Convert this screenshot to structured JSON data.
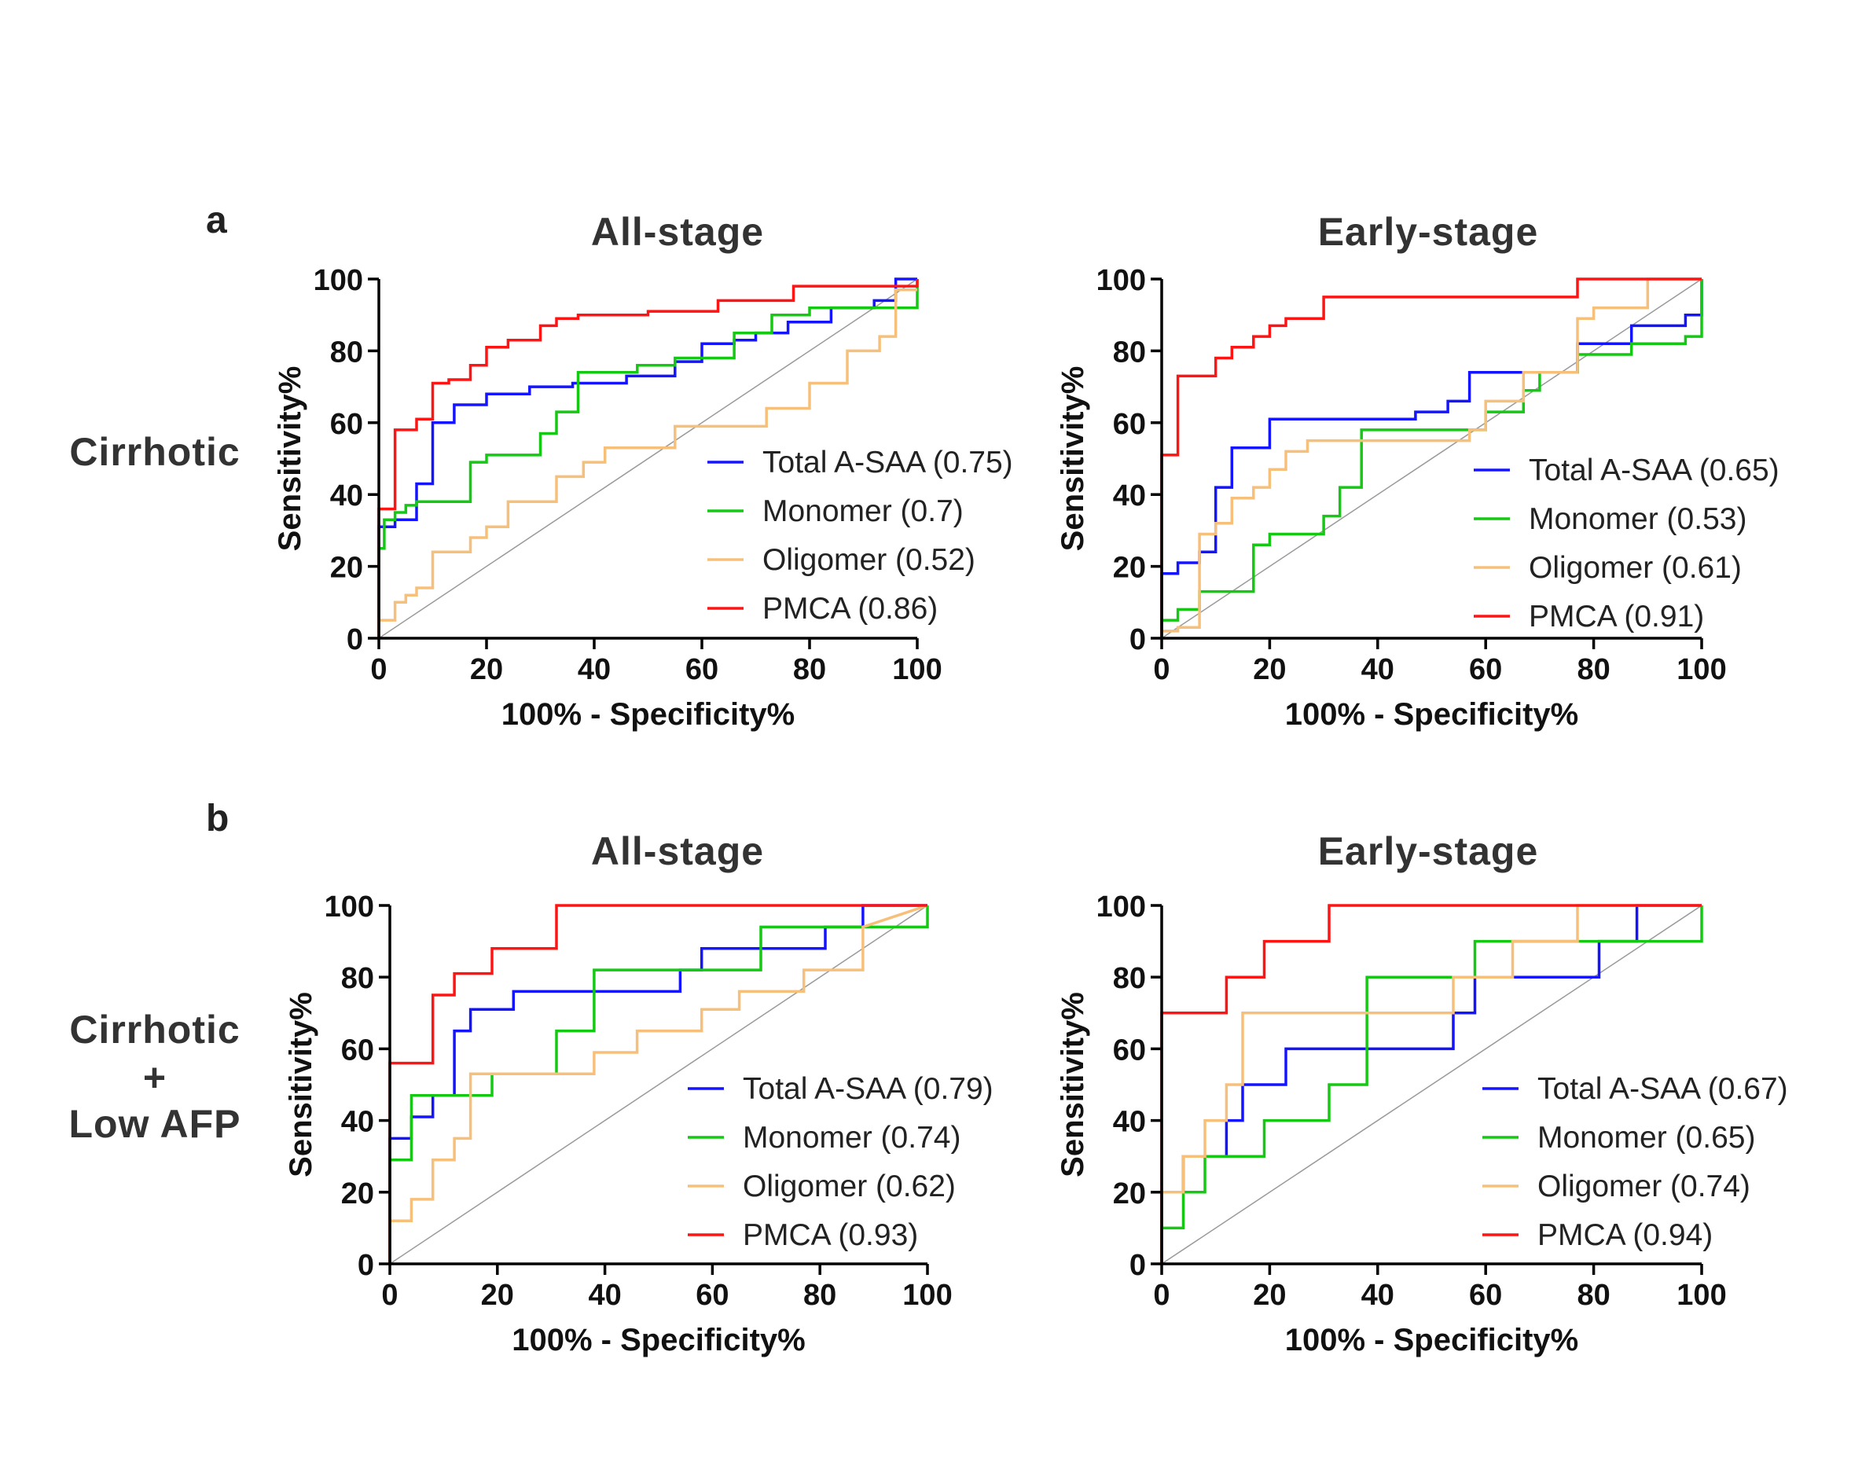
{
  "panels": [
    {
      "letter": "a",
      "row_label": [
        "Cirrhotic"
      ]
    },
    {
      "letter": "b",
      "row_label": [
        "Cirrhotic",
        "+",
        "Low AFP"
      ]
    }
  ],
  "colors": {
    "Total A-SAA": "#1414ff",
    "Monomer": "#14c814",
    "Oligomer": "#f7c07a",
    "PMCA": "#ff1414",
    "reference": "#9a9a9a",
    "axis": "#000000"
  },
  "chart_data": [
    {
      "type": "line",
      "panel": "a",
      "title": "All-stage",
      "xlabel": "100% - Specificity%",
      "ylabel": "Sensitivity%",
      "xlim": [
        0,
        100
      ],
      "ylim": [
        0,
        100
      ],
      "xticks": [
        0,
        20,
        40,
        60,
        80,
        100
      ],
      "yticks": [
        0,
        20,
        40,
        60,
        80,
        100
      ],
      "grid": false,
      "legend_position": "lower-right",
      "series": [
        {
          "name": "Total A-SAA",
          "auc": "(0.75)",
          "label": "Total A-SAA (0.75)",
          "x": [
            0,
            0,
            3,
            3,
            7,
            7,
            10,
            10,
            14,
            14,
            20,
            20,
            28,
            28,
            36,
            36,
            46,
            46,
            55,
            55,
            60,
            60,
            66,
            66,
            70,
            70,
            76,
            76,
            84,
            84,
            92,
            92,
            96,
            96,
            100,
            100
          ],
          "y": [
            0,
            31,
            31,
            33,
            33,
            43,
            43,
            60,
            60,
            65,
            65,
            68,
            68,
            70,
            70,
            71,
            71,
            73,
            73,
            77,
            77,
            82,
            82,
            83,
            83,
            85,
            85,
            88,
            88,
            92,
            92,
            94,
            94,
            100,
            100,
            100
          ]
        },
        {
          "name": "Monomer",
          "auc": "(0.7)",
          "label": "Monomer (0.7)",
          "x": [
            0,
            0,
            1,
            1,
            3,
            3,
            5,
            5,
            7,
            7,
            10,
            10,
            17,
            17,
            20,
            20,
            30,
            30,
            33,
            33,
            37,
            37,
            48,
            48,
            55,
            55,
            66,
            66,
            73,
            73,
            80,
            80,
            100,
            100
          ],
          "y": [
            0,
            25,
            25,
            33,
            33,
            35,
            35,
            37,
            37,
            38,
            38,
            38,
            38,
            49,
            49,
            51,
            51,
            57,
            57,
            63,
            63,
            74,
            74,
            76,
            76,
            78,
            78,
            85,
            85,
            90,
            90,
            92,
            92,
            100
          ]
        },
        {
          "name": "Oligomer",
          "auc": "(0.52)",
          "label": "Oligomer (0.52)",
          "x": [
            0,
            0,
            3,
            3,
            5,
            5,
            7,
            7,
            10,
            10,
            17,
            17,
            20,
            20,
            24,
            24,
            33,
            33,
            38,
            38,
            42,
            42,
            55,
            55,
            72,
            72,
            80,
            80,
            87,
            87,
            93,
            93,
            96,
            96,
            100
          ],
          "y": [
            0,
            5,
            5,
            10,
            10,
            12,
            12,
            14,
            14,
            24,
            24,
            28,
            28,
            31,
            31,
            38,
            38,
            45,
            45,
            49,
            49,
            53,
            53,
            59,
            59,
            64,
            64,
            71,
            71,
            80,
            80,
            84,
            84,
            97,
            97
          ]
        },
        {
          "name": "PMCA",
          "auc": "(0.86)",
          "label": "PMCA (0.86)",
          "x": [
            0,
            0,
            3,
            3,
            7,
            7,
            10,
            10,
            13,
            13,
            17,
            17,
            20,
            20,
            24,
            24,
            30,
            30,
            33,
            33,
            37,
            37,
            50,
            50,
            63,
            63,
            77,
            77,
            100,
            100
          ],
          "y": [
            0,
            36,
            36,
            58,
            58,
            61,
            61,
            71,
            71,
            72,
            72,
            76,
            76,
            81,
            81,
            83,
            83,
            87,
            87,
            89,
            89,
            90,
            90,
            91,
            91,
            94,
            94,
            98,
            98,
            100
          ]
        }
      ]
    },
    {
      "type": "line",
      "panel": "a",
      "title": "Early-stage",
      "xlabel": "100% - Specificity%",
      "ylabel": "Sensitivity%",
      "xlim": [
        0,
        100
      ],
      "ylim": [
        0,
        100
      ],
      "xticks": [
        0,
        20,
        40,
        60,
        80,
        100
      ],
      "yticks": [
        0,
        20,
        40,
        60,
        80,
        100
      ],
      "grid": false,
      "legend_position": "lower-right",
      "series": [
        {
          "name": "Total A-SAA",
          "auc": "(0.65)",
          "label": "Total A-SAA (0.65)",
          "x": [
            0,
            0,
            3,
            3,
            7,
            7,
            10,
            10,
            13,
            13,
            20,
            20,
            33,
            33,
            47,
            47,
            53,
            53,
            57,
            57,
            70,
            70,
            77,
            77,
            87,
            87,
            97,
            97,
            100,
            100
          ],
          "y": [
            0,
            18,
            18,
            21,
            21,
            24,
            24,
            42,
            42,
            53,
            53,
            61,
            61,
            61,
            61,
            63,
            63,
            66,
            66,
            74,
            74,
            74,
            74,
            82,
            82,
            87,
            87,
            90,
            90,
            100
          ]
        },
        {
          "name": "Monomer",
          "auc": "(0.53)",
          "label": "Monomer (0.53)",
          "x": [
            0,
            0,
            3,
            3,
            7,
            7,
            17,
            17,
            20,
            20,
            30,
            30,
            33,
            33,
            37,
            37,
            60,
            60,
            67,
            67,
            70,
            70,
            77,
            77,
            87,
            87,
            97,
            97,
            100,
            100
          ],
          "y": [
            0,
            5,
            5,
            8,
            8,
            13,
            13,
            26,
            26,
            29,
            29,
            34,
            34,
            42,
            42,
            58,
            58,
            63,
            63,
            69,
            69,
            74,
            74,
            79,
            79,
            82,
            82,
            84,
            84,
            100
          ]
        },
        {
          "name": "Oligomer",
          "auc": "(0.61)",
          "label": "Oligomer (0.61)",
          "x": [
            0,
            0,
            3,
            3,
            7,
            7,
            10,
            10,
            13,
            13,
            17,
            17,
            20,
            20,
            23,
            23,
            27,
            27,
            30,
            30,
            57,
            57,
            60,
            60,
            67,
            67,
            77,
            77,
            80,
            80,
            87,
            87,
            90,
            90,
            100
          ],
          "y": [
            0,
            2,
            2,
            3,
            3,
            29,
            29,
            32,
            32,
            39,
            39,
            42,
            42,
            47,
            47,
            52,
            52,
            55,
            55,
            55,
            55,
            58,
            58,
            66,
            66,
            74,
            74,
            89,
            89,
            92,
            92,
            92,
            92,
            100,
            100
          ]
        },
        {
          "name": "PMCA",
          "auc": "(0.91)",
          "label": "PMCA (0.91)",
          "x": [
            0,
            0,
            3,
            3,
            10,
            10,
            13,
            13,
            17,
            17,
            20,
            20,
            23,
            23,
            27,
            27,
            30,
            30,
            77,
            77,
            100
          ],
          "y": [
            0,
            51,
            51,
            73,
            73,
            78,
            78,
            81,
            81,
            84,
            84,
            87,
            87,
            89,
            89,
            89,
            89,
            95,
            95,
            100,
            100
          ]
        }
      ]
    },
    {
      "type": "line",
      "panel": "b",
      "title": "All-stage",
      "xlabel": "100% - Specificity%",
      "ylabel": "Sensitivity%",
      "xlim": [
        0,
        100
      ],
      "ylim": [
        0,
        100
      ],
      "xticks": [
        0,
        20,
        40,
        60,
        80,
        100
      ],
      "yticks": [
        0,
        20,
        40,
        60,
        80,
        100
      ],
      "grid": false,
      "legend_position": "lower-right",
      "series": [
        {
          "name": "Total A-SAA",
          "auc": "(0.79)",
          "label": "Total A-SAA (0.79)",
          "x": [
            0,
            0,
            4,
            4,
            8,
            8,
            12,
            12,
            15,
            15,
            23,
            23,
            54,
            54,
            58,
            58,
            81,
            81,
            88,
            88,
            100
          ],
          "y": [
            0,
            35,
            35,
            41,
            41,
            47,
            47,
            65,
            65,
            71,
            71,
            76,
            76,
            82,
            82,
            88,
            88,
            94,
            94,
            100,
            100
          ]
        },
        {
          "name": "Monomer",
          "auc": "(0.74)",
          "label": "Monomer (0.74)",
          "x": [
            0,
            0,
            4,
            4,
            19,
            19,
            31,
            31,
            38,
            38,
            69,
            69,
            100,
            100
          ],
          "y": [
            0,
            29,
            29,
            47,
            47,
            53,
            53,
            65,
            65,
            82,
            82,
            94,
            94,
            100
          ]
        },
        {
          "name": "Oligomer",
          "auc": "(0.62)",
          "label": "Oligomer (0.62)",
          "x": [
            0,
            0,
            4,
            4,
            8,
            8,
            12,
            12,
            15,
            15,
            38,
            38,
            46,
            46,
            58,
            58,
            65,
            65,
            77,
            77,
            88,
            88,
            100
          ],
          "y": [
            0,
            12,
            12,
            18,
            18,
            29,
            29,
            35,
            35,
            53,
            53,
            59,
            59,
            65,
            65,
            71,
            71,
            76,
            76,
            82,
            82,
            94,
            100
          ]
        },
        {
          "name": "PMCA",
          "auc": "(0.93)",
          "label": "PMCA (0.93)",
          "x": [
            0,
            0,
            8,
            8,
            12,
            12,
            19,
            19,
            31,
            31,
            100
          ],
          "y": [
            0,
            56,
            56,
            75,
            75,
            81,
            81,
            88,
            88,
            100,
            100
          ]
        }
      ]
    },
    {
      "type": "line",
      "panel": "b",
      "title": "Early-stage",
      "xlabel": "100% - Specificity%",
      "ylabel": "Sensitivity%",
      "xlim": [
        0,
        100
      ],
      "ylim": [
        0,
        100
      ],
      "xticks": [
        0,
        20,
        40,
        60,
        80,
        100
      ],
      "yticks": [
        0,
        20,
        40,
        60,
        80,
        100
      ],
      "grid": false,
      "legend_position": "lower-right",
      "series": [
        {
          "name": "Total A-SAA",
          "auc": "(0.67)",
          "label": "Total A-SAA (0.67)",
          "x": [
            0,
            0,
            4,
            4,
            12,
            12,
            15,
            15,
            23,
            23,
            54,
            54,
            58,
            58,
            81,
            81,
            88,
            88,
            100
          ],
          "y": [
            0,
            20,
            20,
            30,
            30,
            40,
            40,
            50,
            50,
            60,
            60,
            70,
            70,
            80,
            80,
            90,
            90,
            100,
            100
          ]
        },
        {
          "name": "Monomer",
          "auc": "(0.65)",
          "label": "Monomer (0.65)",
          "x": [
            0,
            0,
            4,
            4,
            8,
            8,
            19,
            19,
            31,
            31,
            38,
            38,
            58,
            58,
            69,
            69,
            100,
            100
          ],
          "y": [
            0,
            10,
            10,
            20,
            20,
            30,
            30,
            40,
            40,
            50,
            50,
            80,
            80,
            90,
            90,
            90,
            90,
            100
          ]
        },
        {
          "name": "Oligomer",
          "auc": "(0.74)",
          "label": "Oligomer (0.74)",
          "x": [
            0,
            0,
            4,
            4,
            8,
            8,
            12,
            12,
            15,
            15,
            54,
            54,
            65,
            65,
            77,
            77,
            100
          ],
          "y": [
            0,
            20,
            20,
            30,
            30,
            40,
            40,
            50,
            50,
            70,
            70,
            80,
            80,
            90,
            90,
            100,
            100
          ]
        },
        {
          "name": "PMCA",
          "auc": "(0.94)",
          "label": "PMCA (0.94)",
          "x": [
            0,
            0,
            12,
            12,
            19,
            19,
            31,
            31,
            100
          ],
          "y": [
            0,
            70,
            70,
            80,
            80,
            90,
            90,
            100,
            100
          ]
        }
      ]
    }
  ]
}
